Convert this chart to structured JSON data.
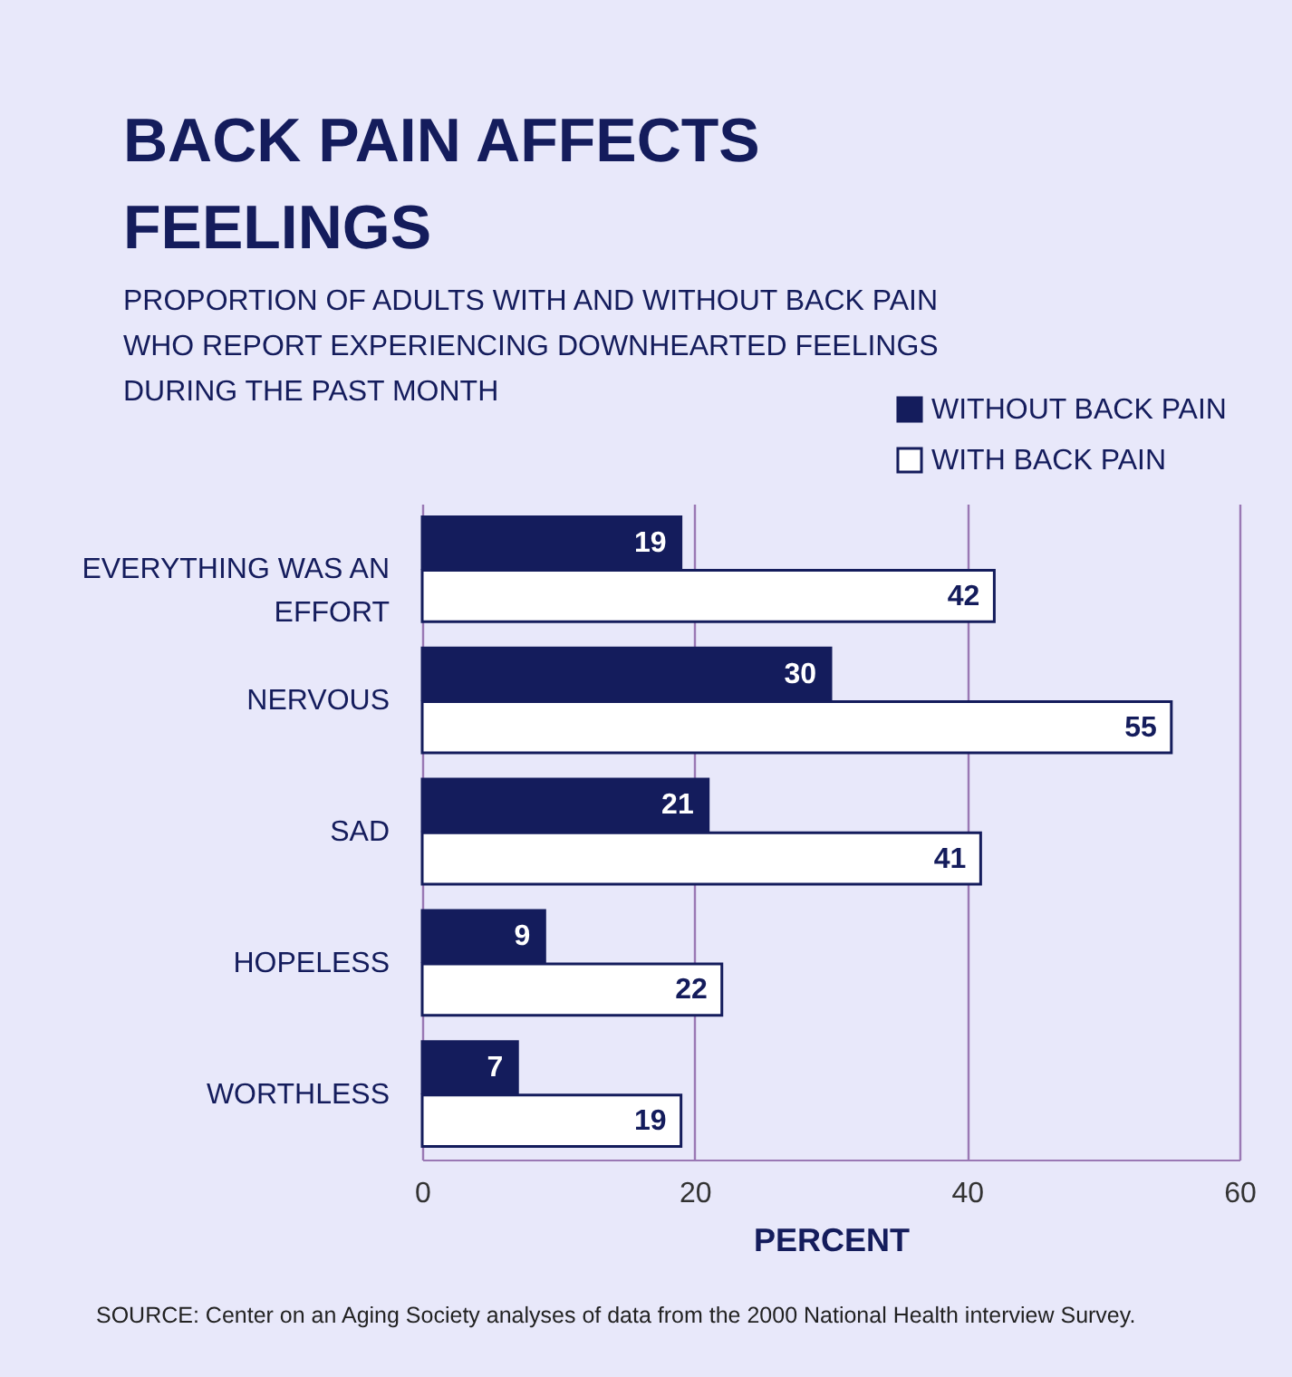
{
  "chart_data": {
    "type": "bar",
    "orientation": "horizontal",
    "title": "BACK PAIN AFFECTS FEELINGS",
    "subtitle": "PROPORTION OF ADULTS WITH AND WITHOUT BACK PAIN WHO REPORT EXPERIENCING DOWNHEARTED FEELINGS DURING THE PAST MONTH",
    "categories": [
      "EVERYTHING WAS AN EFFORT",
      "NERVOUS",
      "SAD",
      "HOPELESS",
      "WORTHLESS"
    ],
    "series": [
      {
        "name": "WITHOUT BACK PAIN",
        "color": "#141c5c",
        "values": [
          19,
          30,
          21,
          9,
          7
        ]
      },
      {
        "name": "WITH BACK PAIN",
        "color": "#ffffff",
        "values": [
          42,
          55,
          41,
          22,
          19
        ]
      }
    ],
    "xlim": [
      0,
      60
    ],
    "xticks": [
      0,
      20,
      40,
      60
    ],
    "xlabel": "PERCENT",
    "grid": "x",
    "legend": "top right",
    "data_labels": true,
    "annotations": [
      "SOURCE: Center on an Aging Society analyses of data from the 2000 National Health interview Survey."
    ]
  }
}
